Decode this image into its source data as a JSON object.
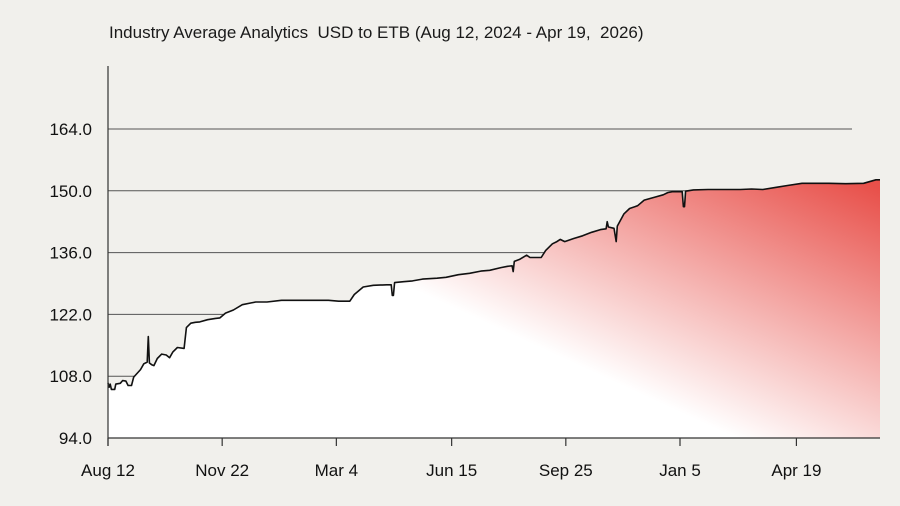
{
  "chart_data": {
    "type": "area",
    "title": "Industry Average Analytics  USD to ETB (Aug 12, 2024 - Apr 19,  2026)",
    "xlabel": "",
    "ylabel": "",
    "ylim": [
      94.0,
      172.0
    ],
    "yticks": [
      "94.0",
      "108.0",
      "122.0",
      "136.0",
      "150.0",
      "164.0"
    ],
    "xticks": [
      "Aug 12",
      "Nov 22",
      "Mar 4",
      "Jun 15",
      "Sep 25",
      "Jan 5",
      "Apr 19"
    ],
    "grid": true,
    "colors": {
      "fill_top": "#e8504a",
      "fill_bottom": "#ffffff",
      "line": "#111111",
      "grid": "#555555"
    },
    "x_start": "2024-08-12",
    "series": [
      {
        "points": [
          [
            "2024-08-12",
            106.5
          ],
          [
            "2024-08-13",
            105.5
          ],
          [
            "2024-08-14",
            106.2
          ],
          [
            "2024-08-15",
            105.0
          ],
          [
            "2024-08-18",
            105.0
          ],
          [
            "2024-08-19",
            106.2
          ],
          [
            "2024-08-23",
            106.4
          ],
          [
            "2024-08-25",
            107.0
          ],
          [
            "2024-08-28",
            106.9
          ],
          [
            "2024-08-30",
            105.9
          ],
          [
            "2024-09-02",
            105.9
          ],
          [
            "2024-09-04",
            107.8
          ],
          [
            "2024-09-10",
            109.5
          ],
          [
            "2024-09-13",
            110.8
          ],
          [
            "2024-09-16",
            111.2
          ],
          [
            "2024-09-17",
            117.0
          ],
          [
            "2024-09-18",
            111.0
          ],
          [
            "2024-09-20",
            110.6
          ],
          [
            "2024-09-22",
            110.4
          ],
          [
            "2024-09-25",
            112.0
          ],
          [
            "2024-09-29",
            113.0
          ],
          [
            "2024-10-03",
            112.8
          ],
          [
            "2024-10-06",
            112.2
          ],
          [
            "2024-10-09",
            113.5
          ],
          [
            "2024-10-13",
            114.5
          ],
          [
            "2024-10-19",
            114.3
          ],
          [
            "2024-10-21",
            119.0
          ],
          [
            "2024-10-25",
            120.0
          ],
          [
            "2024-10-29",
            120.2
          ],
          [
            "2024-11-02",
            120.3
          ],
          [
            "2024-11-09",
            120.8
          ],
          [
            "2024-11-16",
            121.1
          ],
          [
            "2024-11-20",
            121.2
          ],
          [
            "2024-11-25",
            122.3
          ],
          [
            "2024-12-02",
            123.0
          ],
          [
            "2024-12-10",
            124.2
          ],
          [
            "2024-12-18",
            124.6
          ],
          [
            "2024-12-22",
            124.8
          ],
          [
            "2025-01-01",
            124.8
          ],
          [
            "2025-01-14",
            125.2
          ],
          [
            "2025-02-04",
            125.2
          ],
          [
            "2025-02-25",
            125.2
          ],
          [
            "2025-03-06",
            125.0
          ],
          [
            "2025-03-16",
            125.0
          ],
          [
            "2025-03-20",
            126.5
          ],
          [
            "2025-03-28",
            128.2
          ],
          [
            "2025-04-06",
            128.6
          ],
          [
            "2025-04-18",
            128.7
          ],
          [
            "2025-04-22",
            128.7
          ],
          [
            "2025-04-23",
            126.3
          ],
          [
            "2025-04-24",
            126.3
          ],
          [
            "2025-04-25",
            129.2
          ],
          [
            "2025-05-03",
            129.4
          ],
          [
            "2025-05-11",
            129.6
          ],
          [
            "2025-05-20",
            130.0
          ],
          [
            "2025-06-02",
            130.2
          ],
          [
            "2025-06-10",
            130.4
          ],
          [
            "2025-06-21",
            131.0
          ],
          [
            "2025-07-01",
            131.3
          ],
          [
            "2025-07-11",
            131.8
          ],
          [
            "2025-07-19",
            132.0
          ],
          [
            "2025-07-29",
            132.6
          ],
          [
            "2025-08-04",
            132.9
          ],
          [
            "2025-08-08",
            133.0
          ],
          [
            "2025-08-09",
            131.7
          ],
          [
            "2025-08-10",
            134.0
          ],
          [
            "2025-08-15",
            134.5
          ],
          [
            "2025-08-21",
            135.4
          ],
          [
            "2025-08-24",
            134.9
          ],
          [
            "2025-09-03",
            134.9
          ],
          [
            "2025-09-07",
            136.5
          ],
          [
            "2025-09-13",
            138.0
          ],
          [
            "2025-09-17",
            138.5
          ],
          [
            "2025-09-20",
            139.0
          ],
          [
            "2025-09-24",
            138.5
          ],
          [
            "2025-10-02",
            139.2
          ],
          [
            "2025-10-10",
            139.8
          ],
          [
            "2025-10-18",
            140.6
          ],
          [
            "2025-10-26",
            141.2
          ],
          [
            "2025-10-31",
            141.4
          ],
          [
            "2025-11-01",
            143.0
          ],
          [
            "2025-11-02",
            141.8
          ],
          [
            "2025-11-07",
            141.5
          ],
          [
            "2025-11-09",
            138.5
          ],
          [
            "2025-11-10",
            142.0
          ],
          [
            "2025-11-16",
            144.8
          ],
          [
            "2025-11-21",
            146.0
          ],
          [
            "2025-11-28",
            146.6
          ],
          [
            "2025-12-04",
            147.9
          ],
          [
            "2025-12-14",
            148.6
          ],
          [
            "2025-12-21",
            149.1
          ],
          [
            "2025-12-25",
            149.6
          ],
          [
            "2025-12-29",
            149.8
          ],
          [
            "2026-01-07",
            149.8
          ],
          [
            "2026-01-08",
            146.4
          ],
          [
            "2026-01-09",
            146.4
          ],
          [
            "2026-01-10",
            149.9
          ],
          [
            "2026-01-17",
            150.2
          ],
          [
            "2026-01-30",
            150.3
          ],
          [
            "2026-02-12",
            150.3
          ],
          [
            "2026-02-28",
            150.3
          ],
          [
            "2026-03-10",
            150.4
          ],
          [
            "2026-03-20",
            150.3
          ],
          [
            "2026-04-01",
            150.8
          ],
          [
            "2026-04-11",
            151.2
          ],
          [
            "2026-04-24",
            151.7
          ],
          [
            "2026-05-06",
            151.7
          ],
          [
            "2026-05-18",
            151.7
          ],
          [
            "2026-06-02",
            151.6
          ],
          [
            "2026-06-18",
            151.7
          ],
          [
            "2026-06-29",
            152.5
          ],
          [
            "2026-07-14",
            152.5
          ]
        ]
      }
    ]
  }
}
